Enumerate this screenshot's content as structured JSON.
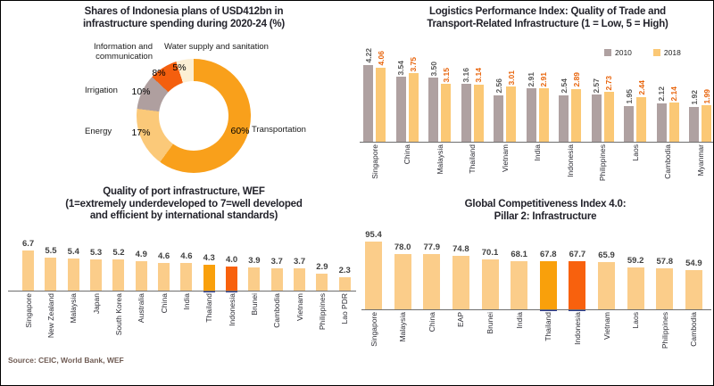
{
  "source_note": "Source: CEIC, World Bank, WEF",
  "colors": {
    "title_text": "#23232B",
    "axis_line": "#6E6E6E",
    "highlight_mid_orange": "#F9A00B",
    "highlight_dark_orange": "#F8610D",
    "navy_underline": "#2E3A8C",
    "light_bar": "#FBCD8A",
    "taupe_bar": "#AFA1A1",
    "orange_2018_bar": "#FBC875"
  },
  "chart_data": [
    {
      "type": "pie",
      "donut": true,
      "title": "Shares of Indonesia plans of USD412bn in\ninfrastructure spending during 2020-24 (%)",
      "labels": [
        "Transportation",
        "Energy",
        "Irrigation",
        "Information and\ncommunication",
        "Water supply and sanitation"
      ],
      "values": [
        60,
        17,
        10,
        8,
        5
      ],
      "value_labels": [
        "60%",
        "17%",
        "10%",
        "8%",
        "5%"
      ],
      "colors": [
        "#F9A01B",
        "#FBC979",
        "#AF9F9F",
        "#F45F0E",
        "#FCEFD4"
      ],
      "start_angle_deg": 0,
      "direction": "clockwise"
    },
    {
      "type": "bar",
      "title": "Logistics Performance Index: Quality of Trade and\nTransport-Related Infrastructure (1 = Low, 5 = High)",
      "categories": [
        "Singapore",
        "China",
        "Malaysia",
        "Thailand",
        "Vietnam",
        "India",
        "Indonesia",
        "Philippines",
        "Laos",
        "Cambodia",
        "Myanmar"
      ],
      "series": [
        {
          "name": "2010",
          "color": "#AFA1A1",
          "label_color": "#595959",
          "values": [
            4.22,
            3.54,
            3.5,
            3.16,
            2.56,
            2.91,
            2.54,
            2.57,
            1.95,
            2.12,
            1.92
          ]
        },
        {
          "name": "2018",
          "color": "#FBC875",
          "label_color": "#E8650D",
          "values": [
            4.06,
            3.75,
            3.15,
            3.14,
            3.01,
            2.91,
            2.89,
            2.73,
            2.44,
            2.14,
            1.99
          ]
        }
      ],
      "decimals": 2,
      "ylim": [
        0,
        4.5
      ],
      "legend_position": "top-right",
      "grid": false
    },
    {
      "type": "bar",
      "title": "Quality of port infrastructure, WEF\n(1=extremely underdeveloped to 7=well developed\nand efficient by international standards)",
      "categories": [
        "Singapore",
        "New Zealand",
        "Malaysia",
        "Japan",
        "South Korea",
        "Australia",
        "China",
        "India",
        "Thailand",
        "Indonesia",
        "Brunei",
        "Cambodia",
        "Vietnam",
        "Philippines",
        "Lao PDR"
      ],
      "values": [
        6.7,
        5.5,
        5.4,
        5.3,
        5.2,
        4.9,
        4.6,
        4.6,
        4.3,
        4.0,
        3.9,
        3.7,
        3.7,
        2.9,
        2.3
      ],
      "decimals": 1,
      "ylim": [
        0,
        7
      ],
      "default_color": "#FBCD8A",
      "highlights": {
        "8": "#F9A00B",
        "9": "#F8610D"
      },
      "label_color": "#404040",
      "grid": false
    },
    {
      "type": "bar",
      "title": "Global Competitiveness Index 4.0:\nPillar 2: Infrastructure",
      "categories": [
        "Singapore",
        "Malaysia",
        "China",
        "EAP",
        "Brunei",
        "India",
        "Thailand",
        "Indonesia",
        "Vietnam",
        "Laos",
        "Philippines",
        "Cambodia"
      ],
      "values": [
        95.4,
        78.0,
        77.9,
        74.8,
        70.1,
        68.1,
        67.8,
        67.7,
        65.9,
        59.2,
        57.8,
        54.9
      ],
      "decimals": 1,
      "ylim": [
        0,
        100
      ],
      "default_color": "#FBCD8A",
      "highlights": {
        "6": "#F9A00B",
        "7": "#F8610D"
      },
      "label_color": "#404040",
      "grid": false
    }
  ]
}
